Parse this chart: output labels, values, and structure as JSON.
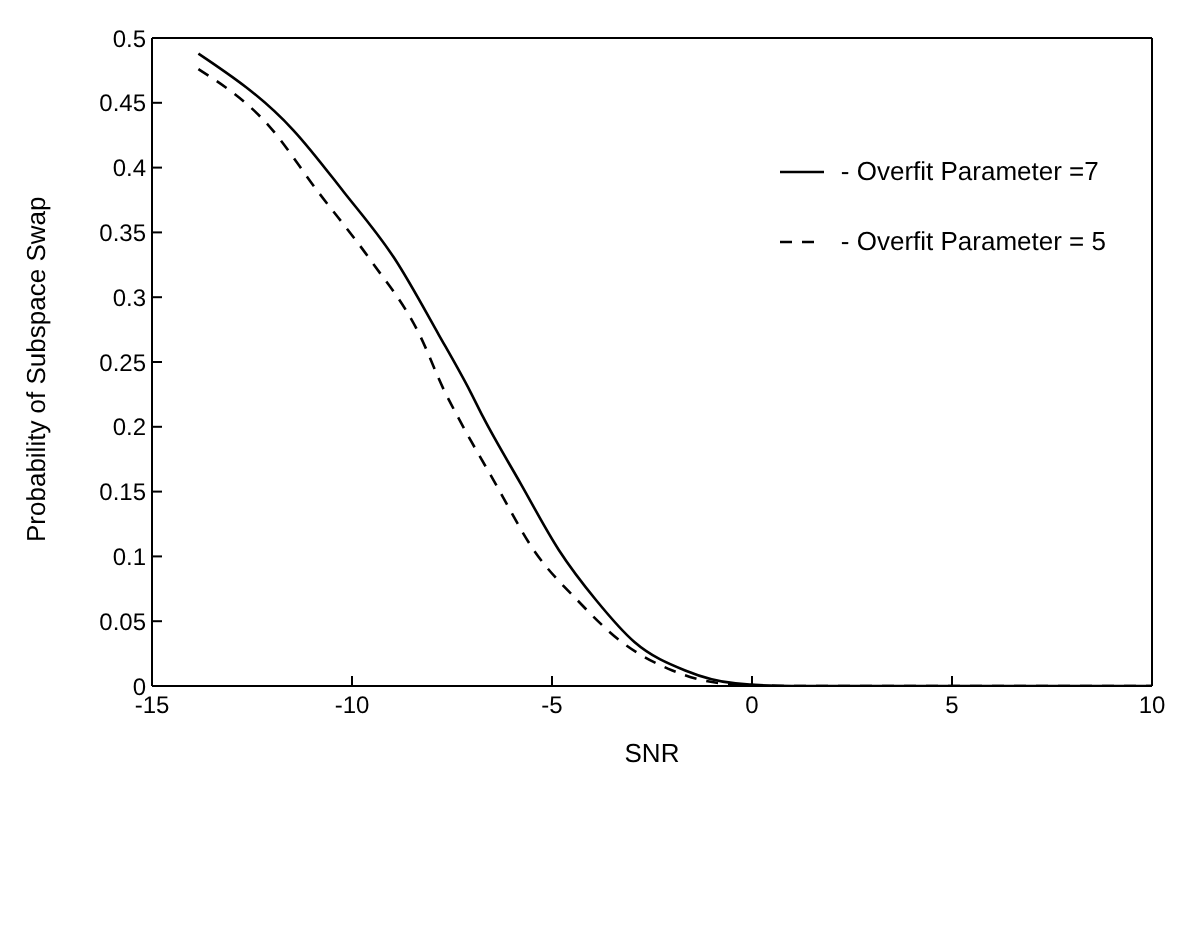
{
  "chart_data": {
    "type": "line",
    "xlabel": "SNR",
    "ylabel": "Probability of Subspace Swap",
    "xlim": [
      -15,
      10
    ],
    "xticks": [
      -15,
      -10,
      -5,
      0,
      5,
      10
    ],
    "ylim": [
      0,
      0.5
    ],
    "yticks": [
      0,
      0.05,
      0.1,
      0.15,
      0.2,
      0.25,
      0.3,
      0.35,
      0.4,
      0.45,
      0.5
    ],
    "legend": "top right",
    "grid": false,
    "marker": "none",
    "series": [
      {
        "name": "- Overfit Parameter =7",
        "color": "#000000",
        "line_style": "solid",
        "x": [
          -13.84,
          -11.47,
          -10.2,
          -8.94,
          -7.83,
          -7.04,
          -6.73,
          -5.78,
          -4.83,
          -3.89,
          -2.94,
          -1.67,
          -0.41,
          1,
          3,
          6,
          10
        ],
        "values": [
          0.488,
          0.429,
          0.381,
          0.33,
          0.271,
          0.227,
          0.208,
          0.156,
          0.105,
          0.066,
          0.034,
          0.012,
          0.002,
          0,
          0,
          0,
          0
        ]
      },
      {
        "name": "- Overfit Parameter = 5",
        "color": "#000000",
        "line_style": "dashed",
        "x": [
          -13.84,
          -12.1,
          -10.84,
          -9.57,
          -8.31,
          -7.68,
          -7.36,
          -6.41,
          -5.46,
          -4.36,
          -3.26,
          -1.99,
          -0.73,
          1,
          3,
          6,
          10
        ],
        "values": [
          0.476,
          0.433,
          0.381,
          0.33,
          0.271,
          0.227,
          0.208,
          0.156,
          0.105,
          0.066,
          0.034,
          0.012,
          0.002,
          0,
          0,
          0,
          0
        ]
      }
    ]
  }
}
